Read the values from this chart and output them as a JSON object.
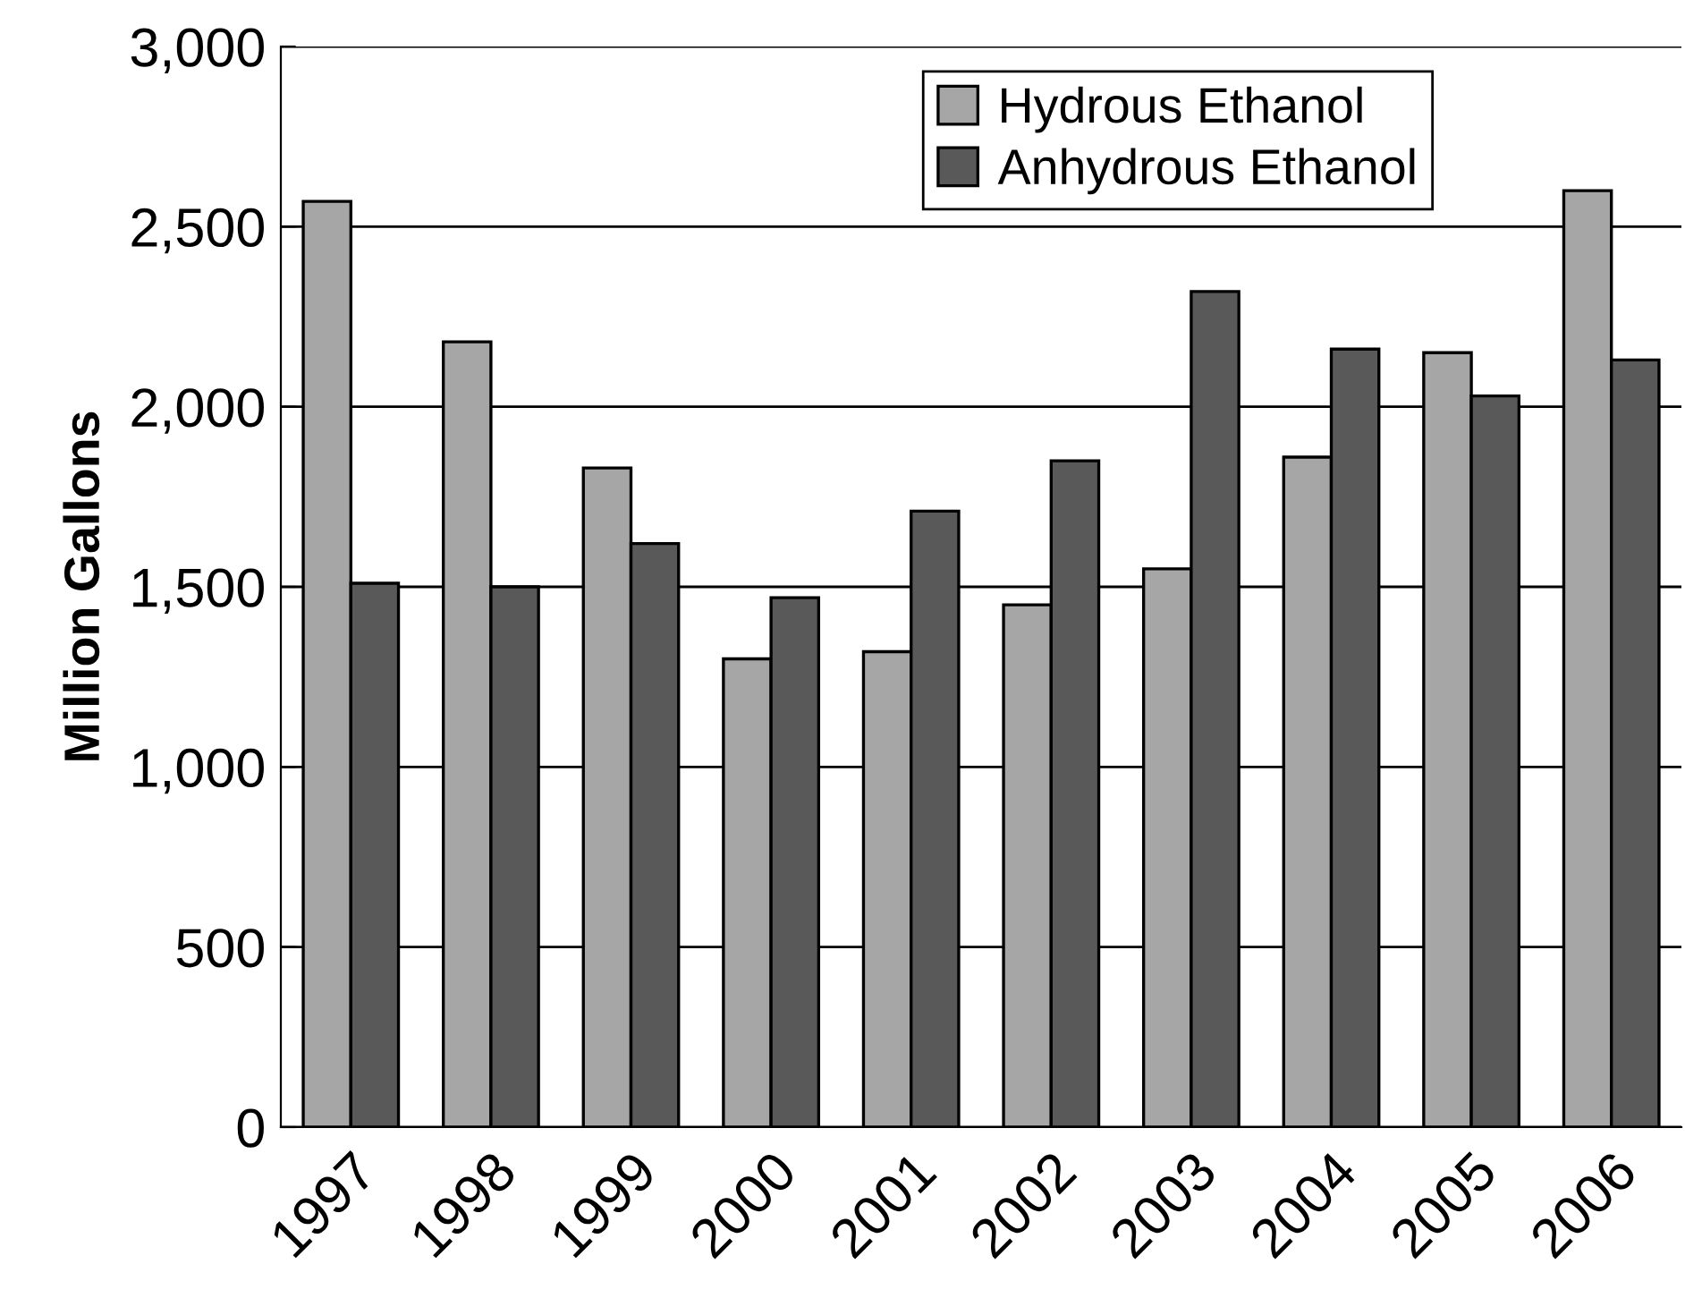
{
  "chart_data": {
    "type": "bar",
    "categories": [
      "1997",
      "1998",
      "1999",
      "2000",
      "2001",
      "2002",
      "2003",
      "2004",
      "2005",
      "2006"
    ],
    "series": [
      {
        "name": "Hydrous Ethanol",
        "color": "#a6a6a6",
        "values": [
          2570,
          2180,
          1830,
          1300,
          1320,
          1450,
          1550,
          1860,
          2150,
          2600
        ]
      },
      {
        "name": "Anhydrous Ethanol",
        "color": "#595959",
        "values": [
          1510,
          1500,
          1620,
          1470,
          1710,
          1850,
          2320,
          2160,
          2030,
          2130
        ]
      }
    ],
    "ylabel": "Million Gallons",
    "ylim": [
      0,
      3000
    ],
    "yticks": [
      0,
      {
        "value": 500,
        "label": "500"
      },
      {
        "value": 1000,
        "label": "1,000"
      },
      {
        "value": 1500,
        "label": "1,500"
      },
      {
        "value": 2000,
        "label": "2,000"
      },
      {
        "value": 2500,
        "label": "2,500"
      },
      {
        "value": 3000,
        "label": "3,000"
      }
    ],
    "grid": "y",
    "legend": "top right"
  }
}
